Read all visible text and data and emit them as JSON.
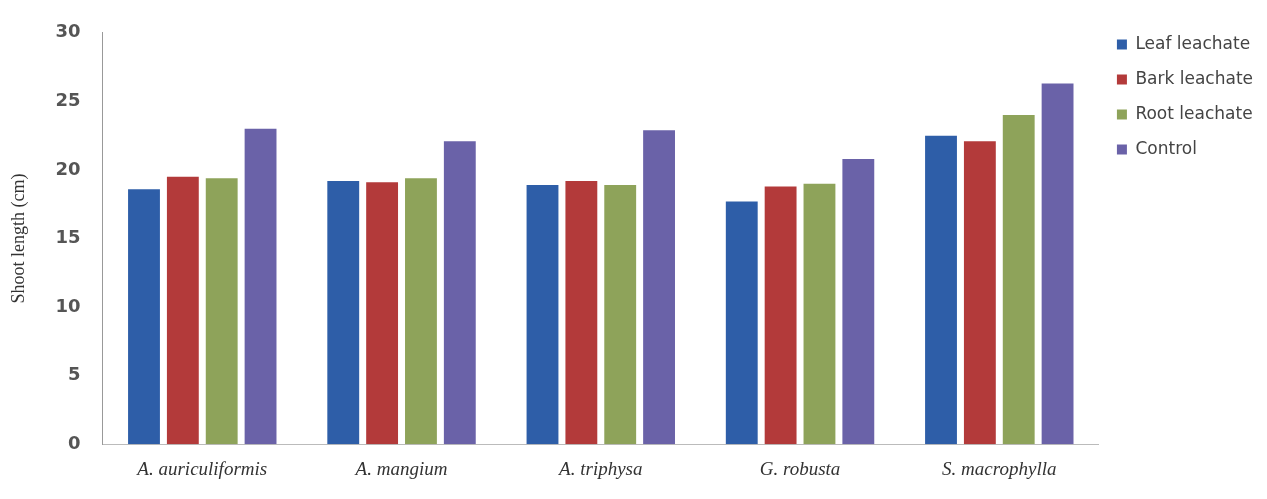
{
  "chart_data": {
    "type": "bar",
    "ylabel": "Shoot length (cm)",
    "categories": [
      "A. auriculiformis",
      "A. mangium",
      "A. triphysa",
      "G. robusta",
      "S. macrophylla"
    ],
    "series": [
      {
        "name": "Leaf leachate",
        "color": "#2e5ea8",
        "values": [
          18.6,
          19.2,
          18.9,
          17.7,
          22.5
        ]
      },
      {
        "name": "Bark leachate",
        "color": "#b33a3a",
        "values": [
          19.5,
          19.1,
          19.2,
          18.8,
          22.1
        ]
      },
      {
        "name": "Root leachate",
        "color": "#8ea35a",
        "values": [
          19.4,
          19.4,
          18.9,
          19.0,
          24.0
        ]
      },
      {
        "name": "Control",
        "color": "#6a62a8",
        "values": [
          23.0,
          22.1,
          22.9,
          20.8,
          26.3
        ]
      }
    ],
    "ylim": [
      0,
      30
    ],
    "yticks": [
      0,
      5,
      10,
      15,
      20,
      25,
      30
    ],
    "grid": false,
    "legend": "right"
  }
}
